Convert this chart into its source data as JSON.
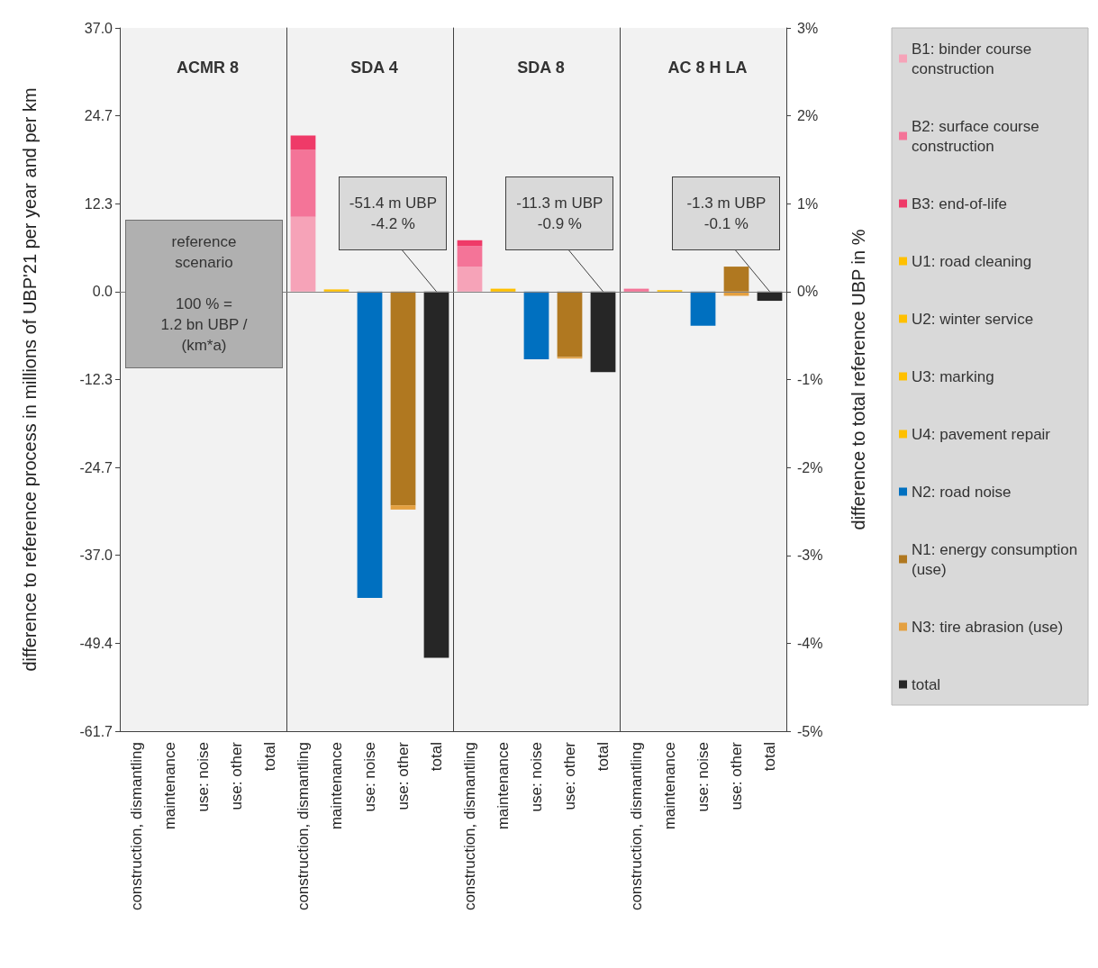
{
  "chart_data": [
    {
      "type": "bar",
      "title": "ACMR 8",
      "ylabel": "difference to reference process in millions of UBP'21 per year and per km",
      "categories": [
        "construction, dismantling",
        "maintenance",
        "use: noise",
        "use: other",
        "total"
      ],
      "values": [
        null,
        null,
        null,
        null,
        null
      ],
      "ylim": [
        -61.7,
        37.0
      ],
      "yticks": [
        {
          "value": 37.0,
          "label": "37.0"
        },
        24.7,
        12.3,
        {
          "value": 0,
          "label": "0.0"
        },
        -12.3,
        -24.7,
        {
          "value": -37.0,
          "label": "-37.0"
        },
        -49.4,
        -61.7
      ],
      "ref_lines": [
        {
          "axis": "y",
          "value": 0,
          "color": "#808080"
        }
      ],
      "annotations": [
        "reference\nscenario\n\n100 % =\n1.2 bn UBP /\n(km*a)"
      ]
    },
    {
      "type": "bar",
      "title": "SDA 4",
      "stacked": true,
      "tick_labels": "x",
      "categories": [
        "construction, dismantling",
        "maintenance",
        "use: noise",
        "use: other",
        "total"
      ],
      "ylim": [
        -61.7,
        37.0
      ],
      "series": [
        {
          "color": "#f6a3b8",
          "values": [
            10.5,
            null,
            null,
            null,
            null
          ]
        },
        {
          "color": "#f47498",
          "values": [
            9.4,
            null,
            null,
            null,
            null
          ]
        },
        {
          "color": "#ef3a68",
          "values": [
            2.0,
            null,
            null,
            null,
            null
          ]
        },
        {
          "color": "#ffc000",
          "values": [
            null,
            0.3,
            null,
            null,
            null
          ]
        },
        {
          "color": "#0070c0",
          "values": [
            null,
            null,
            -43.0,
            null,
            null
          ]
        },
        {
          "color": "#b07820",
          "values": [
            null,
            null,
            null,
            -30.0,
            null
          ]
        },
        {
          "color": "#e4a040",
          "values": [
            null,
            null,
            null,
            -0.6,
            null
          ]
        },
        {
          "color": "#262626",
          "values": [
            null,
            null,
            null,
            null,
            -51.4
          ]
        }
      ],
      "ref_lines": [
        {
          "axis": "y",
          "value": 0,
          "color": "#808080"
        }
      ],
      "annotations": [
        {
          "text": "-51.4 m UBP\n-4.2 %",
          "x": "total",
          "y": 0
        }
      ]
    },
    {
      "type": "bar",
      "title": "SDA 8",
      "stacked": true,
      "tick_labels": "x",
      "categories": [
        "construction, dismantling",
        "maintenance",
        "use: noise",
        "use: other",
        "total"
      ],
      "ylim": [
        -61.7,
        37.0
      ],
      "series": [
        {
          "color": "#f6a3b8",
          "values": [
            3.5,
            null,
            null,
            null,
            null
          ]
        },
        {
          "color": "#f47498",
          "values": [
            2.9,
            null,
            null,
            null,
            null
          ]
        },
        {
          "color": "#ef3a68",
          "values": [
            0.8,
            null,
            null,
            null,
            null
          ]
        },
        {
          "color": "#ffc000",
          "values": [
            null,
            0.4,
            null,
            null,
            null
          ]
        },
        {
          "color": "#0070c0",
          "values": [
            null,
            null,
            -9.5,
            null,
            null
          ]
        },
        {
          "color": "#b07820",
          "values": [
            null,
            null,
            null,
            -9.2,
            null
          ]
        },
        {
          "color": "#e4a040",
          "values": [
            null,
            null,
            null,
            -0.2,
            null
          ]
        },
        {
          "color": "#262626",
          "values": [
            null,
            null,
            null,
            null,
            -11.3
          ]
        }
      ],
      "ref_lines": [
        {
          "axis": "y",
          "value": 0,
          "color": "#808080"
        }
      ],
      "annotations": [
        {
          "text": "-11.3 m UBP\n-0.9 %",
          "x": "total",
          "y": 0
        }
      ]
    },
    {
      "type": "bar",
      "title": "AC 8 H LA",
      "stacked": true,
      "legend": "right",
      "y2label": "difference to total reference UBP in %",
      "categories": [
        "construction, dismantling",
        "maintenance",
        "use: noise",
        "use: other",
        "total"
      ],
      "ylim": [
        -61.7,
        37.0
      ],
      "y2lim": [
        -5,
        3
      ],
      "y2ticks": [
        {
          "value": 3,
          "label": "3%"
        },
        {
          "value": 2,
          "label": "2%"
        },
        {
          "value": 1,
          "label": "1%"
        },
        {
          "value": 0,
          "label": "0%"
        },
        {
          "value": -1,
          "label": "-1%"
        },
        {
          "value": -2,
          "label": "-2%"
        },
        {
          "value": -3,
          "label": "-3%"
        },
        {
          "value": -4,
          "label": "-4%"
        },
        {
          "value": -5,
          "label": "-5%"
        }
      ],
      "series": [
        {
          "name": "B1: binder course construction",
          "color": "#f6a3b8",
          "values": [
            null,
            null,
            null,
            null,
            null
          ]
        },
        {
          "name": "B2: surface course construction",
          "color": "#f47498",
          "values": [
            0.4,
            null,
            null,
            null,
            null
          ]
        },
        {
          "name": "B3: end-of-life",
          "color": "#ef3a68",
          "values": [
            null,
            null,
            null,
            null,
            null
          ]
        },
        {
          "name": "U1: road cleaning",
          "color": "#ffc000",
          "values": [
            null,
            null,
            null,
            null,
            null
          ]
        },
        {
          "name": "U2: winter service",
          "color": "#ffc000",
          "values": [
            null,
            null,
            null,
            null,
            null
          ]
        },
        {
          "name": "U3: marking",
          "color": "#ffc000",
          "values": [
            null,
            null,
            null,
            null,
            null
          ]
        },
        {
          "name": "U4: pavement repair",
          "color": "#ffc000",
          "values": [
            null,
            0.2,
            null,
            null,
            null
          ]
        },
        {
          "name": "N2: road noise",
          "color": "#0070c0",
          "values": [
            null,
            null,
            -4.8,
            null,
            null
          ]
        },
        {
          "name": "N1: energy consumption (use)",
          "color": "#b07820",
          "values": [
            null,
            null,
            null,
            3.5,
            null
          ]
        },
        {
          "name": "N3: tire abrasion (use)",
          "color": "#e4a040",
          "values": [
            null,
            null,
            null,
            -0.6,
            null
          ]
        },
        {
          "name": "total",
          "color": "#262626",
          "values": [
            null,
            null,
            null,
            null,
            -1.3
          ]
        }
      ],
      "ref_lines": [
        {
          "axis": "y",
          "value": 0,
          "color": "#808080"
        }
      ],
      "annotations": [
        {
          "text": "-1.3 m UBP\n-0.1 %",
          "x": "total",
          "y": 0
        }
      ]
    }
  ]
}
